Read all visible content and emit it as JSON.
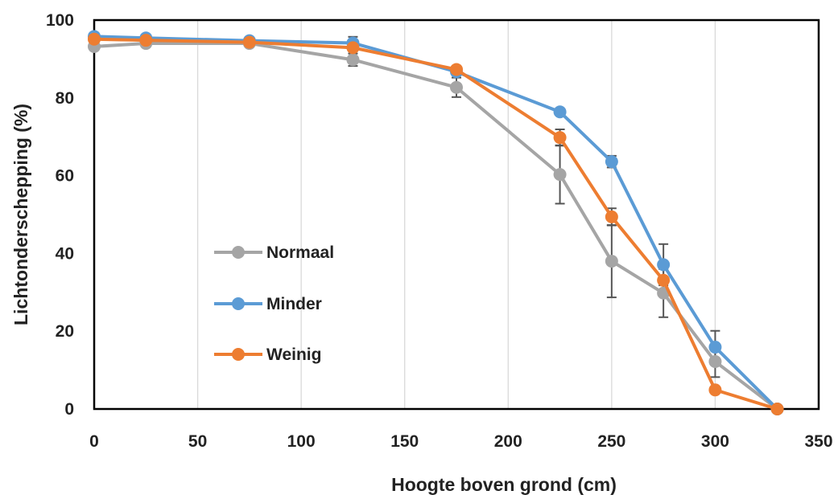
{
  "chart_data": {
    "type": "line",
    "title": "",
    "xlabel": "Hoogte boven grond (cm)",
    "ylabel": "Lichtonderschepping (%)",
    "xlim": [
      0,
      350
    ],
    "ylim": [
      0,
      100
    ],
    "xticks": [
      0,
      50,
      100,
      150,
      200,
      250,
      300,
      350
    ],
    "yticks": [
      0,
      20,
      40,
      60,
      80,
      100
    ],
    "grid": "vertical",
    "legend_position": "left-center",
    "series": [
      {
        "name": "Normaal",
        "color": "#a5a5a5",
        "x": [
          0,
          25,
          75,
          125,
          175,
          225,
          250,
          275,
          300,
          330
        ],
        "y": [
          93.2,
          94.0,
          94.0,
          89.8,
          82.7,
          60.3,
          38.0,
          29.8,
          12.2,
          0
        ],
        "err": [
          null,
          null,
          null,
          1.6,
          2.5,
          7.5,
          9.3,
          6.2,
          4.0,
          null
        ]
      },
      {
        "name": "Minder",
        "color": "#5b9bd5",
        "x": [
          0,
          25,
          75,
          125,
          175,
          225,
          250,
          275,
          300,
          330
        ],
        "y": [
          95.8,
          95.4,
          94.7,
          94.1,
          86.7,
          76.4,
          63.6,
          37.1,
          15.9,
          0
        ],
        "err": [
          null,
          null,
          null,
          1.6,
          null,
          null,
          1.5,
          5.3,
          4.2,
          null
        ]
      },
      {
        "name": "Weinig",
        "color": "#ed7d31",
        "x": [
          0,
          25,
          75,
          125,
          175,
          225,
          250,
          275,
          300,
          330
        ],
        "y": [
          95.1,
          94.8,
          94.3,
          92.9,
          87.3,
          69.8,
          49.4,
          33.1,
          4.9,
          0
        ],
        "err": [
          null,
          null,
          null,
          null,
          null,
          2.1,
          2.2,
          null,
          null,
          null
        ]
      }
    ]
  }
}
